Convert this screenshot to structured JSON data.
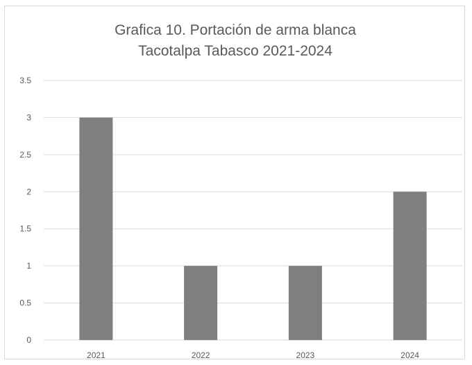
{
  "chart_data": {
    "type": "bar",
    "title_line1": "Grafica 10. Portación de arma blanca",
    "title_line2": "Tacotalpa Tabasco 2021-2024",
    "categories": [
      "2021",
      "2022",
      "2023",
      "2024"
    ],
    "values": [
      3,
      1,
      1,
      2
    ],
    "ylim": [
      0,
      3.5
    ],
    "yticks": [
      "0",
      "0.5",
      "1",
      "1.5",
      "2",
      "2.5",
      "3",
      "3.5"
    ],
    "ytick_values": [
      0,
      0.5,
      1,
      1.5,
      2,
      2.5,
      3,
      3.5
    ],
    "xlabel": "",
    "ylabel": "",
    "grid": true,
    "legend": "none",
    "bar_color": "#7f7f7f",
    "grid_color": "#d9d9d9"
  }
}
